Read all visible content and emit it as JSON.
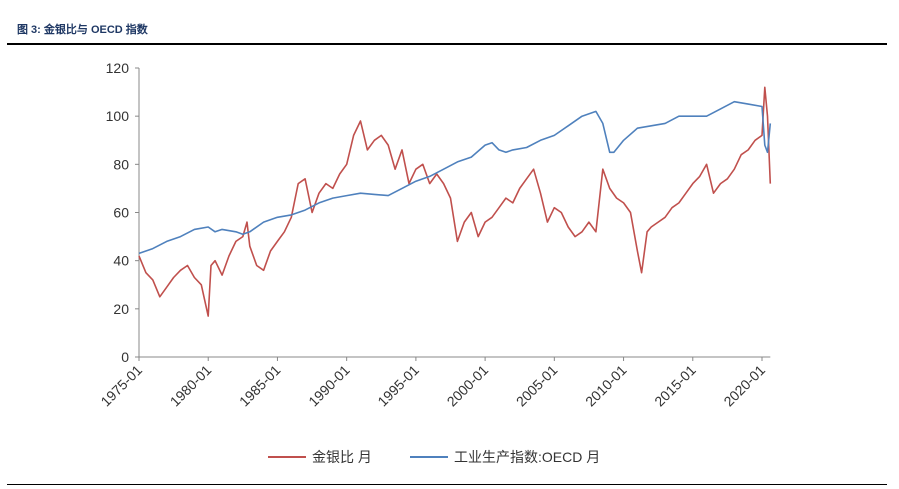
{
  "title": "图 3: 金银比与 OECD 指数",
  "chart_data": {
    "type": "line",
    "title": "图 3: 金银比与 OECD 指数",
    "xlabel": "",
    "ylabel": "",
    "ylim": [
      0,
      120
    ],
    "yticks": [
      0,
      20,
      40,
      60,
      80,
      100,
      120
    ],
    "xlim": [
      1975,
      2020.6
    ],
    "xticks": [
      {
        "v": 1975,
        "label": "1975-01"
      },
      {
        "v": 1980,
        "label": "1980-01"
      },
      {
        "v": 1985,
        "label": "1985-01"
      },
      {
        "v": 1990,
        "label": "1990-01"
      },
      {
        "v": 1995,
        "label": "1995-01"
      },
      {
        "v": 2000,
        "label": "2000-01"
      },
      {
        "v": 2005,
        "label": "2005-01"
      },
      {
        "v": 2010,
        "label": "2010-01"
      },
      {
        "v": 2015,
        "label": "2015-01"
      },
      {
        "v": 2020,
        "label": "2020-01"
      }
    ],
    "grid": false,
    "legend": "bottom",
    "series": [
      {
        "name": "金银比 月",
        "color": "#c0504d",
        "points": [
          [
            1975,
            42
          ],
          [
            1975.5,
            35
          ],
          [
            1976,
            32
          ],
          [
            1976.5,
            25
          ],
          [
            1977,
            29
          ],
          [
            1977.5,
            33
          ],
          [
            1978,
            36
          ],
          [
            1978.5,
            38
          ],
          [
            1979,
            33
          ],
          [
            1979.5,
            30
          ],
          [
            1980,
            17
          ],
          [
            1980.2,
            38
          ],
          [
            1980.5,
            40
          ],
          [
            1981,
            34
          ],
          [
            1981.5,
            42
          ],
          [
            1982,
            48
          ],
          [
            1982.5,
            50
          ],
          [
            1982.8,
            56
          ],
          [
            1983,
            46
          ],
          [
            1983.5,
            38
          ],
          [
            1984,
            36
          ],
          [
            1984.5,
            44
          ],
          [
            1985,
            48
          ],
          [
            1985.5,
            52
          ],
          [
            1986,
            58
          ],
          [
            1986.5,
            72
          ],
          [
            1987,
            74
          ],
          [
            1987.5,
            60
          ],
          [
            1988,
            68
          ],
          [
            1988.5,
            72
          ],
          [
            1989,
            70
          ],
          [
            1989.5,
            76
          ],
          [
            1990,
            80
          ],
          [
            1990.5,
            92
          ],
          [
            1991,
            98
          ],
          [
            1991.5,
            86
          ],
          [
            1992,
            90
          ],
          [
            1992.5,
            92
          ],
          [
            1993,
            88
          ],
          [
            1993.5,
            78
          ],
          [
            1994,
            86
          ],
          [
            1994.5,
            72
          ],
          [
            1995,
            78
          ],
          [
            1995.5,
            80
          ],
          [
            1996,
            72
          ],
          [
            1996.5,
            76
          ],
          [
            1997,
            72
          ],
          [
            1997.5,
            66
          ],
          [
            1998,
            48
          ],
          [
            1998.5,
            56
          ],
          [
            1999,
            60
          ],
          [
            1999.5,
            50
          ],
          [
            2000,
            56
          ],
          [
            2000.5,
            58
          ],
          [
            2001,
            62
          ],
          [
            2001.5,
            66
          ],
          [
            2002,
            64
          ],
          [
            2002.5,
            70
          ],
          [
            2003,
            74
          ],
          [
            2003.5,
            78
          ],
          [
            2004,
            68
          ],
          [
            2004.5,
            56
          ],
          [
            2005,
            62
          ],
          [
            2005.5,
            60
          ],
          [
            2006,
            54
          ],
          [
            2006.5,
            50
          ],
          [
            2007,
            52
          ],
          [
            2007.5,
            56
          ],
          [
            2008,
            52
          ],
          [
            2008.5,
            78
          ],
          [
            2009,
            70
          ],
          [
            2009.5,
            66
          ],
          [
            2010,
            64
          ],
          [
            2010.5,
            60
          ],
          [
            2011,
            44
          ],
          [
            2011.3,
            35
          ],
          [
            2011.7,
            52
          ],
          [
            2012,
            54
          ],
          [
            2012.5,
            56
          ],
          [
            2013,
            58
          ],
          [
            2013.5,
            62
          ],
          [
            2014,
            64
          ],
          [
            2014.5,
            68
          ],
          [
            2015,
            72
          ],
          [
            2015.5,
            75
          ],
          [
            2016,
            80
          ],
          [
            2016.5,
            68
          ],
          [
            2017,
            72
          ],
          [
            2017.5,
            74
          ],
          [
            2018,
            78
          ],
          [
            2018.5,
            84
          ],
          [
            2019,
            86
          ],
          [
            2019.5,
            90
          ],
          [
            2020,
            92
          ],
          [
            2020.2,
            112
          ],
          [
            2020.4,
            100
          ],
          [
            2020.6,
            72
          ]
        ]
      },
      {
        "name": "工业生产指数:OECD 月",
        "color": "#4f81bd",
        "points": [
          [
            1975,
            43
          ],
          [
            1976,
            45
          ],
          [
            1977,
            48
          ],
          [
            1978,
            50
          ],
          [
            1979,
            53
          ],
          [
            1980,
            54
          ],
          [
            1980.5,
            52
          ],
          [
            1981,
            53
          ],
          [
            1982,
            52
          ],
          [
            1982.5,
            51
          ],
          [
            1983,
            52
          ],
          [
            1984,
            56
          ],
          [
            1985,
            58
          ],
          [
            1986,
            59
          ],
          [
            1987,
            61
          ],
          [
            1988,
            64
          ],
          [
            1989,
            66
          ],
          [
            1990,
            67
          ],
          [
            1991,
            68
          ],
          [
            1992,
            67.5
          ],
          [
            1993,
            67
          ],
          [
            1994,
            70
          ],
          [
            1995,
            73
          ],
          [
            1996,
            75
          ],
          [
            1997,
            78
          ],
          [
            1998,
            81
          ],
          [
            1999,
            83
          ],
          [
            2000,
            88
          ],
          [
            2000.5,
            89
          ],
          [
            2001,
            86
          ],
          [
            2001.5,
            85
          ],
          [
            2002,
            86
          ],
          [
            2003,
            87
          ],
          [
            2004,
            90
          ],
          [
            2005,
            92
          ],
          [
            2006,
            96
          ],
          [
            2007,
            100
          ],
          [
            2008,
            102
          ],
          [
            2008.5,
            97
          ],
          [
            2009,
            85
          ],
          [
            2009.3,
            85
          ],
          [
            2010,
            90
          ],
          [
            2011,
            95
          ],
          [
            2012,
            96
          ],
          [
            2013,
            97
          ],
          [
            2014,
            100
          ],
          [
            2015,
            100
          ],
          [
            2016,
            100
          ],
          [
            2017,
            103
          ],
          [
            2018,
            106
          ],
          [
            2019,
            105
          ],
          [
            2020,
            104
          ],
          [
            2020.2,
            88
          ],
          [
            2020.4,
            85
          ],
          [
            2020.6,
            97
          ]
        ]
      }
    ]
  }
}
